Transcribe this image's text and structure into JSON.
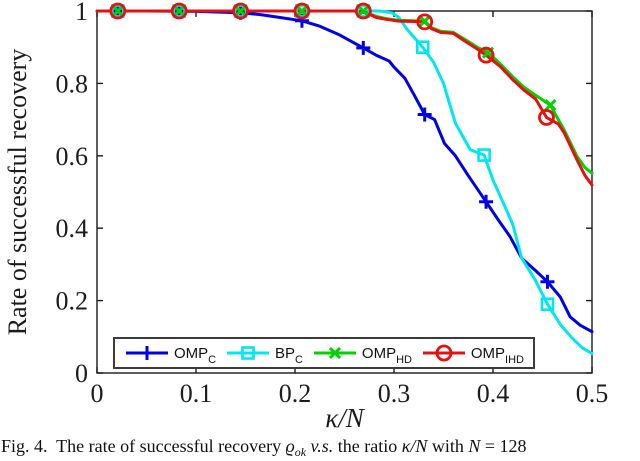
{
  "figure": {
    "caption_segments": [
      {
        "t": "Fig. 4.  The rate of successful recovery ",
        "s": "n"
      },
      {
        "t": "ϱ",
        "s": "i"
      },
      {
        "t": "ok",
        "s": "sub"
      },
      {
        "t": " ",
        "s": "n"
      },
      {
        "t": "v.s.",
        "s": "i"
      },
      {
        "t": " the ratio ",
        "s": "n"
      },
      {
        "t": "κ/N",
        "s": "i"
      },
      {
        "t": " with ",
        "s": "n"
      },
      {
        "t": "N",
        "s": "i"
      },
      {
        "t": " = 128",
        "s": "n"
      }
    ]
  },
  "chart_data": {
    "type": "line",
    "title": "",
    "xlabel": "κ/N",
    "ylabel": "Rate of successful recovery",
    "xlim": [
      0,
      0.5
    ],
    "ylim": [
      0,
      1
    ],
    "grid": false,
    "axis_color": "#1a1a1a",
    "xticks": {
      "values": [
        0,
        0.1,
        0.2,
        0.3,
        0.4,
        0.5
      ],
      "labels": [
        "0",
        "0.1",
        "0.2",
        "0.3",
        "0.4",
        "0.5"
      ]
    },
    "yticks": {
      "values": [
        0,
        0.2,
        0.4,
        0.6,
        0.8,
        1
      ],
      "labels": [
        "0",
        "0.2",
        "0.4",
        "0.6",
        "0.8",
        "1"
      ]
    },
    "legend": {
      "position": "south-inside",
      "entries": [
        {
          "name": "OMP",
          "sub": "C",
          "marker": "plus",
          "color": "#0000eb"
        },
        {
          "name": "BP",
          "sub": "C",
          "marker": "square",
          "color": "#00e8ee"
        },
        {
          "name": "OMP",
          "sub": "HD",
          "marker": "x",
          "color": "#00d300"
        },
        {
          "name": "OMP",
          "sub": "IHD",
          "marker": "circle",
          "color": "#ea0f0f"
        }
      ]
    },
    "series": [
      {
        "name": "OMP_C",
        "color": "#0000eb",
        "marker": "plus",
        "points": [
          [
            0,
            1
          ],
          [
            0.05,
            1
          ],
          [
            0.1,
            0.999
          ],
          [
            0.145,
            0.995
          ],
          [
            0.165,
            0.99
          ],
          [
            0.185,
            0.982
          ],
          [
            0.207,
            0.973
          ],
          [
            0.225,
            0.958
          ],
          [
            0.245,
            0.934
          ],
          [
            0.269,
            0.898
          ],
          [
            0.282,
            0.878
          ],
          [
            0.295,
            0.862
          ],
          [
            0.3,
            0.845
          ],
          [
            0.311,
            0.814
          ],
          [
            0.32,
            0.77
          ],
          [
            0.331,
            0.714
          ],
          [
            0.341,
            0.7
          ],
          [
            0.351,
            0.634
          ],
          [
            0.362,
            0.6
          ],
          [
            0.375,
            0.545
          ],
          [
            0.393,
            0.473
          ],
          [
            0.405,
            0.424
          ],
          [
            0.417,
            0.378
          ],
          [
            0.429,
            0.317
          ],
          [
            0.443,
            0.283
          ],
          [
            0.455,
            0.252
          ],
          [
            0.468,
            0.21
          ],
          [
            0.478,
            0.155
          ],
          [
            0.488,
            0.132
          ],
          [
            0.5,
            0.114
          ]
        ],
        "marker_points": [
          [
            0.021,
            1
          ],
          [
            0.083,
            1
          ],
          [
            0.145,
            0.995
          ],
          [
            0.207,
            0.973
          ],
          [
            0.269,
            0.898
          ],
          [
            0.331,
            0.714
          ],
          [
            0.393,
            0.473
          ],
          [
            0.455,
            0.252
          ]
        ]
      },
      {
        "name": "BP_C",
        "color": "#00e8ee",
        "marker": "square",
        "points": [
          [
            0,
            1
          ],
          [
            0.1,
            1
          ],
          [
            0.2,
            1
          ],
          [
            0.25,
            1
          ],
          [
            0.285,
            1
          ],
          [
            0.298,
            0.995
          ],
          [
            0.305,
            0.982
          ],
          [
            0.313,
            0.95
          ],
          [
            0.322,
            0.922
          ],
          [
            0.329,
            0.9
          ],
          [
            0.34,
            0.858
          ],
          [
            0.35,
            0.8
          ],
          [
            0.362,
            0.69
          ],
          [
            0.377,
            0.617
          ],
          [
            0.391,
            0.602
          ],
          [
            0.4,
            0.533
          ],
          [
            0.412,
            0.46
          ],
          [
            0.42,
            0.41
          ],
          [
            0.429,
            0.317
          ],
          [
            0.442,
            0.26
          ],
          [
            0.455,
            0.19
          ],
          [
            0.468,
            0.134
          ],
          [
            0.48,
            0.096
          ],
          [
            0.49,
            0.07
          ],
          [
            0.5,
            0.054
          ]
        ],
        "marker_points": [
          [
            0.021,
            1
          ],
          [
            0.083,
            1
          ],
          [
            0.145,
            1
          ],
          [
            0.207,
            1
          ],
          [
            0.269,
            1
          ],
          [
            0.329,
            0.9
          ],
          [
            0.391,
            0.602
          ],
          [
            0.455,
            0.19
          ]
        ]
      },
      {
        "name": "OMP_HD",
        "color": "#00d300",
        "marker": "x",
        "points": [
          [
            0,
            1
          ],
          [
            0.1,
            1
          ],
          [
            0.2,
            1
          ],
          [
            0.26,
            1
          ],
          [
            0.272,
            0.996
          ],
          [
            0.282,
            0.985
          ],
          [
            0.292,
            0.979
          ],
          [
            0.305,
            0.974
          ],
          [
            0.32,
            0.973
          ],
          [
            0.331,
            0.972
          ],
          [
            0.338,
            0.954
          ],
          [
            0.347,
            0.944
          ],
          [
            0.36,
            0.941
          ],
          [
            0.372,
            0.921
          ],
          [
            0.384,
            0.9
          ],
          [
            0.395,
            0.885
          ],
          [
            0.408,
            0.852
          ],
          [
            0.42,
            0.818
          ],
          [
            0.431,
            0.79
          ],
          [
            0.443,
            0.767
          ],
          [
            0.458,
            0.74
          ],
          [
            0.466,
            0.7
          ],
          [
            0.472,
            0.671
          ],
          [
            0.485,
            0.598
          ],
          [
            0.493,
            0.567
          ],
          [
            0.5,
            0.552
          ]
        ],
        "marker_points": [
          [
            0.021,
            1
          ],
          [
            0.083,
            1
          ],
          [
            0.145,
            1
          ],
          [
            0.207,
            1
          ],
          [
            0.269,
            1
          ],
          [
            0.331,
            0.972
          ],
          [
            0.395,
            0.885
          ],
          [
            0.458,
            0.74
          ]
        ]
      },
      {
        "name": "OMP_IHD",
        "color": "#ea0f0f",
        "marker": "circle",
        "points": [
          [
            0,
            1
          ],
          [
            0.1,
            1
          ],
          [
            0.2,
            1
          ],
          [
            0.26,
            1
          ],
          [
            0.272,
            0.995
          ],
          [
            0.282,
            0.982
          ],
          [
            0.292,
            0.977
          ],
          [
            0.305,
            0.972
          ],
          [
            0.32,
            0.971
          ],
          [
            0.331,
            0.97
          ],
          [
            0.338,
            0.951
          ],
          [
            0.347,
            0.941
          ],
          [
            0.36,
            0.938
          ],
          [
            0.372,
            0.916
          ],
          [
            0.384,
            0.895
          ],
          [
            0.393,
            0.878
          ],
          [
            0.408,
            0.845
          ],
          [
            0.42,
            0.81
          ],
          [
            0.431,
            0.782
          ],
          [
            0.443,
            0.757
          ],
          [
            0.454,
            0.706
          ],
          [
            0.466,
            0.688
          ],
          [
            0.472,
            0.663
          ],
          [
            0.485,
            0.588
          ],
          [
            0.493,
            0.545
          ],
          [
            0.5,
            0.519
          ]
        ],
        "marker_points": [
          [
            0.021,
            1
          ],
          [
            0.083,
            1
          ],
          [
            0.145,
            1
          ],
          [
            0.207,
            1
          ],
          [
            0.269,
            1
          ],
          [
            0.331,
            0.97
          ],
          [
            0.393,
            0.878
          ],
          [
            0.454,
            0.706
          ]
        ]
      }
    ]
  }
}
